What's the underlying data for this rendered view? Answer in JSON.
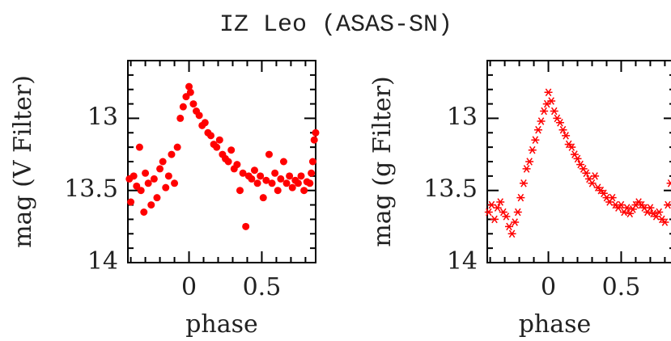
{
  "title": "IZ Leo (ASAS-SN)",
  "chart_data": [
    {
      "type": "scatter",
      "x_label": "phase",
      "y_label": "mag (V Filter)",
      "marker": "circle",
      "y_inverted": true,
      "xlim": [
        -0.42,
        0.87
      ],
      "ylim": [
        12.6,
        14
      ],
      "xticks": [
        0,
        0.5
      ],
      "yticks": [
        13,
        13.5,
        14
      ],
      "x_minor_ticks": [
        -0.4,
        -0.3,
        -0.2,
        -0.1,
        0.1,
        0.2,
        0.3,
        0.4,
        0.6,
        0.7,
        0.8
      ],
      "y_minor_ticks": [
        12.7,
        12.8,
        12.9,
        13.1,
        13.2,
        13.3,
        13.4,
        13.6,
        13.7,
        13.8,
        13.9
      ],
      "x": [
        -0.41,
        -0.4,
        -0.38,
        -0.36,
        -0.34,
        -0.33,
        -0.31,
        -0.3,
        -0.28,
        -0.26,
        -0.24,
        -0.22,
        -0.2,
        -0.18,
        -0.16,
        -0.14,
        -0.12,
        -0.1,
        -0.08,
        -0.06,
        -0.04,
        -0.02,
        0.0,
        0.01,
        0.03,
        0.05,
        0.07,
        0.09,
        0.11,
        0.13,
        0.15,
        0.17,
        0.19,
        0.21,
        0.23,
        0.25,
        0.27,
        0.29,
        0.31,
        0.33,
        0.35,
        0.37,
        0.39,
        0.41,
        0.43,
        0.45,
        0.47,
        0.49,
        0.51,
        0.53,
        0.55,
        0.57,
        0.59,
        0.61,
        0.63,
        0.65,
        0.67,
        0.69,
        0.71,
        0.73,
        0.75,
        0.77,
        0.79,
        0.81,
        0.83,
        0.84,
        0.85,
        0.86,
        0.87
      ],
      "series": [
        {
          "color": "#ff0000",
          "values": [
            13.42,
            13.58,
            13.4,
            13.47,
            13.2,
            13.5,
            13.65,
            13.38,
            13.45,
            13.6,
            13.42,
            13.55,
            13.35,
            13.3,
            13.48,
            13.4,
            13.25,
            13.45,
            13.2,
            13.0,
            12.92,
            12.85,
            12.78,
            12.82,
            12.9,
            12.95,
            12.98,
            13.05,
            13.03,
            13.1,
            13.12,
            13.18,
            13.2,
            13.15,
            13.25,
            13.28,
            13.3,
            13.22,
            13.35,
            13.32,
            13.5,
            13.38,
            13.75,
            13.4,
            13.42,
            13.36,
            13.45,
            13.4,
            13.55,
            13.43,
            13.25,
            13.45,
            13.38,
            13.5,
            13.42,
            13.3,
            13.45,
            13.4,
            13.48,
            13.43,
            13.45,
            13.4,
            13.5,
            13.44,
            13.45,
            13.38,
            13.3,
            13.15,
            13.1
          ]
        }
      ]
    },
    {
      "type": "scatter",
      "x_label": "phase",
      "y_label": "mag (g Filter)",
      "marker": "asterisk",
      "y_inverted": true,
      "xlim": [
        -0.42,
        0.87
      ],
      "ylim": [
        12.6,
        14
      ],
      "xticks": [
        0,
        0.5
      ],
      "yticks": [
        13,
        13.5,
        14
      ],
      "x_minor_ticks": [
        -0.4,
        -0.3,
        -0.2,
        -0.1,
        0.1,
        0.2,
        0.3,
        0.4,
        0.6,
        0.7,
        0.8
      ],
      "y_minor_ticks": [
        12.7,
        12.8,
        12.9,
        13.1,
        13.2,
        13.3,
        13.4,
        13.6,
        13.7,
        13.8,
        13.9
      ],
      "x": [
        -0.41,
        -0.39,
        -0.37,
        -0.35,
        -0.33,
        -0.31,
        -0.29,
        -0.27,
        -0.25,
        -0.23,
        -0.21,
        -0.19,
        -0.17,
        -0.15,
        -0.13,
        -0.11,
        -0.09,
        -0.07,
        -0.05,
        -0.03,
        -0.01,
        0.0,
        0.02,
        0.04,
        0.06,
        0.08,
        0.1,
        0.12,
        0.14,
        0.16,
        0.18,
        0.2,
        0.22,
        0.24,
        0.26,
        0.28,
        0.3,
        0.32,
        0.34,
        0.36,
        0.38,
        0.4,
        0.42,
        0.44,
        0.46,
        0.48,
        0.5,
        0.52,
        0.54,
        0.56,
        0.58,
        0.6,
        0.62,
        0.64,
        0.66,
        0.68,
        0.7,
        0.72,
        0.74,
        0.76,
        0.78,
        0.8,
        0.82,
        0.84
      ],
      "series": [
        {
          "color": "#ff0000",
          "values": [
            13.65,
            13.6,
            13.7,
            13.62,
            13.58,
            13.65,
            13.68,
            13.75,
            13.8,
            13.72,
            13.65,
            13.55,
            13.45,
            13.35,
            13.3,
            13.22,
            13.15,
            13.08,
            13.02,
            12.95,
            12.9,
            12.82,
            12.88,
            12.95,
            13.0,
            13.03,
            13.08,
            13.12,
            13.18,
            13.2,
            13.25,
            13.28,
            13.32,
            13.35,
            13.38,
            13.42,
            13.45,
            13.4,
            13.48,
            13.5,
            13.52,
            13.55,
            13.58,
            13.55,
            13.6,
            13.62,
            13.6,
            13.65,
            13.62,
            13.66,
            13.63,
            13.6,
            13.58,
            13.6,
            13.62,
            13.65,
            13.62,
            13.66,
            13.68,
            13.65,
            13.7,
            13.72,
            13.6,
            13.45
          ]
        }
      ]
    }
  ]
}
